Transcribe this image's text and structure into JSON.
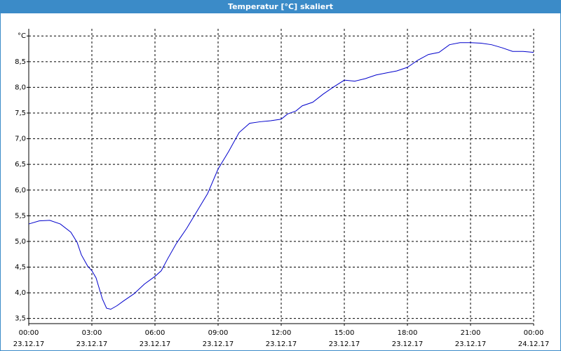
{
  "window_title": "Temperatur [°C] skaliert",
  "chart_data": {
    "type": "line",
    "x": [
      0,
      0.5,
      1,
      1.5,
      2,
      2.3,
      2.5,
      2.8,
      3,
      3.2,
      3.5,
      3.7,
      3.9,
      4.2,
      4.5,
      5,
      5.5,
      6,
      6.3,
      6.6,
      7,
      7.5,
      8,
      8.5,
      9,
      9.5,
      10,
      10.5,
      11,
      11.5,
      12,
      12.3,
      12.7,
      13,
      13.5,
      14,
      14.5,
      15,
      15.5,
      16,
      16.5,
      17,
      17.5,
      18,
      18.5,
      19,
      19.5,
      20,
      20.5,
      21,
      21.5,
      22,
      22.5,
      23,
      23.5,
      24
    ],
    "series": [
      {
        "color": "#0000cc",
        "values": [
          5.34,
          5.4,
          5.41,
          5.34,
          5.18,
          4.98,
          4.74,
          4.52,
          4.43,
          4.29,
          3.88,
          3.7,
          3.68,
          3.75,
          3.84,
          3.98,
          4.17,
          4.32,
          4.43,
          4.66,
          4.95,
          5.25,
          5.59,
          5.93,
          6.41,
          6.75,
          7.12,
          7.3,
          7.33,
          7.35,
          7.38,
          7.48,
          7.54,
          7.64,
          7.71,
          7.87,
          8.01,
          8.14,
          8.12,
          8.17,
          8.24,
          8.28,
          8.32,
          8.39,
          8.53,
          8.64,
          8.68,
          8.83,
          8.87,
          8.87,
          8.86,
          8.83,
          8.77,
          8.7,
          8.7,
          8.68
        ]
      }
    ],
    "xlim": [
      0,
      24
    ],
    "xticks": [
      {
        "value": 0,
        "label": "00:00"
      },
      {
        "value": 3,
        "label": "03:00"
      },
      {
        "value": 6,
        "label": "06:00"
      },
      {
        "value": 9,
        "label": "09:00"
      },
      {
        "value": 12,
        "label": "12:00"
      },
      {
        "value": 15,
        "label": "15:00"
      },
      {
        "value": 18,
        "label": "18:00"
      },
      {
        "value": 21,
        "label": "21:00"
      },
      {
        "value": 24,
        "label": "00:00"
      }
    ],
    "xtick_dates": [
      "23.12.17",
      "23.12.17",
      "23.12.17",
      "23.12.17",
      "23.12.17",
      "23.12.17",
      "23.12.17",
      "23.12.17",
      "24.12.17"
    ],
    "ylim": [
      3.4,
      9.14
    ],
    "yticks": [
      {
        "value": 3.5,
        "label": "3,5"
      },
      {
        "value": 4,
        "label": "4,0"
      },
      {
        "value": 4.5,
        "label": "4,5"
      },
      {
        "value": 5,
        "label": "5,0"
      },
      {
        "value": 5.5,
        "label": "5,5"
      },
      {
        "value": 6,
        "label": "6,0"
      },
      {
        "value": 6.5,
        "label": "6,5"
      },
      {
        "value": 7,
        "label": "7,0"
      },
      {
        "value": 7.5,
        "label": "7,5"
      },
      {
        "value": 8,
        "label": "8,0"
      },
      {
        "value": 8.5,
        "label": "8,5"
      },
      {
        "value": 9,
        "label": "°C"
      }
    ],
    "grid": true
  }
}
